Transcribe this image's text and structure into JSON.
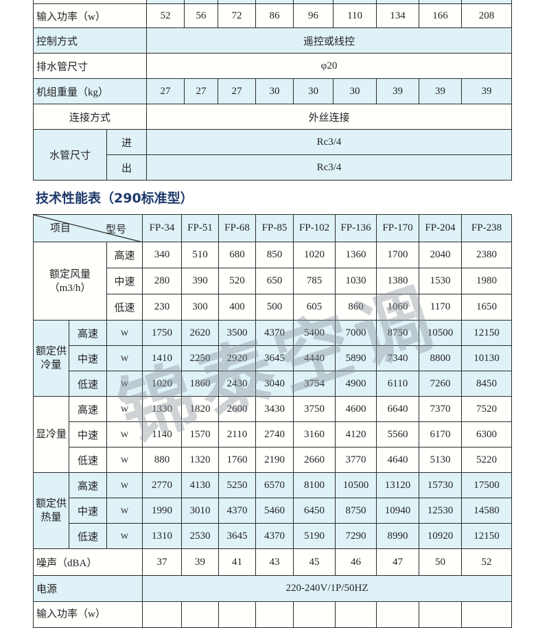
{
  "top_table": {
    "input_power": {
      "label": "输入功率（w）",
      "values": [
        "52",
        "56",
        "72",
        "86",
        "96",
        "110",
        "134",
        "166",
        "208"
      ]
    },
    "control": {
      "label": "控制方式",
      "value": "遥控或线控"
    },
    "drain": {
      "label": "排水管尺寸",
      "value": "φ20"
    },
    "weight": {
      "label": "机组重量（kg）",
      "values": [
        "27",
        "27",
        "27",
        "30",
        "30",
        "30",
        "39",
        "39",
        "39"
      ]
    },
    "connection": {
      "label": "连接方式",
      "value": "外丝连接"
    },
    "pipe": {
      "label": "水管尺寸",
      "in_label": "进",
      "in_value": "Rc3/4",
      "out_label": "出",
      "out_value": "Rc3/4"
    }
  },
  "section_title": "技术性能表（290标准型）",
  "spec_table": {
    "header": {
      "item": "项目",
      "model": "型号",
      "models": [
        "FP-34",
        "FP-51",
        "FP-68",
        "FP-85",
        "FP-102",
        "FP-136",
        "FP-170",
        "FP-204",
        "FP-238"
      ]
    },
    "airflow": {
      "label": "额定风量",
      "unit_label": "（m3/h）",
      "rows": [
        {
          "speed": "高速",
          "values": [
            "340",
            "510",
            "680",
            "850",
            "1020",
            "1360",
            "1700",
            "2040",
            "2380"
          ]
        },
        {
          "speed": "中速",
          "values": [
            "280",
            "390",
            "520",
            "650",
            "785",
            "1030",
            "1380",
            "1530",
            "1980"
          ]
        },
        {
          "speed": "低速",
          "values": [
            "230",
            "300",
            "400",
            "500",
            "605",
            "860",
            "1060",
            "1170",
            "1650"
          ]
        }
      ]
    },
    "groups": [
      {
        "label": "额定供冷量",
        "color": "#dff2f7",
        "rows": [
          {
            "speed": "高速",
            "unit": "W",
            "values": [
              "1750",
              "2620",
              "3500",
              "4370",
              "5400",
              "7000",
              "8750",
              "10500",
              "12150"
            ]
          },
          {
            "speed": "中速",
            "unit": "W",
            "values": [
              "1410",
              "2250",
              "2920",
              "3645",
              "4440",
              "5890",
              "7340",
              "8800",
              "10130"
            ]
          },
          {
            "speed": "低速",
            "unit": "W",
            "values": [
              "1020",
              "1860",
              "2430",
              "3040",
              "3754",
              "4900",
              "6110",
              "7260",
              "8450"
            ]
          }
        ]
      },
      {
        "label": "显冷量",
        "color": "#fffffc",
        "rows": [
          {
            "speed": "高速",
            "unit": "W",
            "values": [
              "1330",
              "1820",
              "2600",
              "3430",
              "3750",
              "4600",
              "6640",
              "7370",
              "7520"
            ]
          },
          {
            "speed": "中速",
            "unit": "W",
            "values": [
              "1140",
              "1570",
              "2110",
              "2740",
              "3160",
              "4120",
              "5560",
              "6170",
              "6300"
            ]
          },
          {
            "speed": "低速",
            "unit": "W",
            "values": [
              "880",
              "1320",
              "1760",
              "2190",
              "2660",
              "3770",
              "4640",
              "5130",
              "5220"
            ]
          }
        ]
      },
      {
        "label": "额定供热量",
        "color": "#dff2f7",
        "rows": [
          {
            "speed": "高速",
            "unit": "W",
            "values": [
              "2770",
              "4130",
              "5250",
              "6570",
              "8100",
              "10500",
              "13120",
              "15730",
              "17500"
            ]
          },
          {
            "speed": "中速",
            "unit": "W",
            "values": [
              "1990",
              "3010",
              "4370",
              "5460",
              "6450",
              "8750",
              "10940",
              "12530",
              "14580"
            ]
          },
          {
            "speed": "低速",
            "unit": "W",
            "values": [
              "1310",
              "2530",
              "3645",
              "4370",
              "5190",
              "7290",
              "8990",
              "10920",
              "12150"
            ]
          }
        ]
      }
    ],
    "noise": {
      "label": "噪声（dBA）",
      "values": [
        "37",
        "39",
        "41",
        "43",
        "45",
        "46",
        "47",
        "50",
        "52"
      ]
    },
    "power": {
      "label": "电源",
      "value": "220-240V/1P/50HZ"
    },
    "input_power": {
      "label": "输入功率（w）"
    }
  },
  "watermark": "锦泰空调",
  "colors": {
    "cell_tint": "#dff2f7",
    "title": "#1e3a6a",
    "border": "#2a2a2a"
  }
}
